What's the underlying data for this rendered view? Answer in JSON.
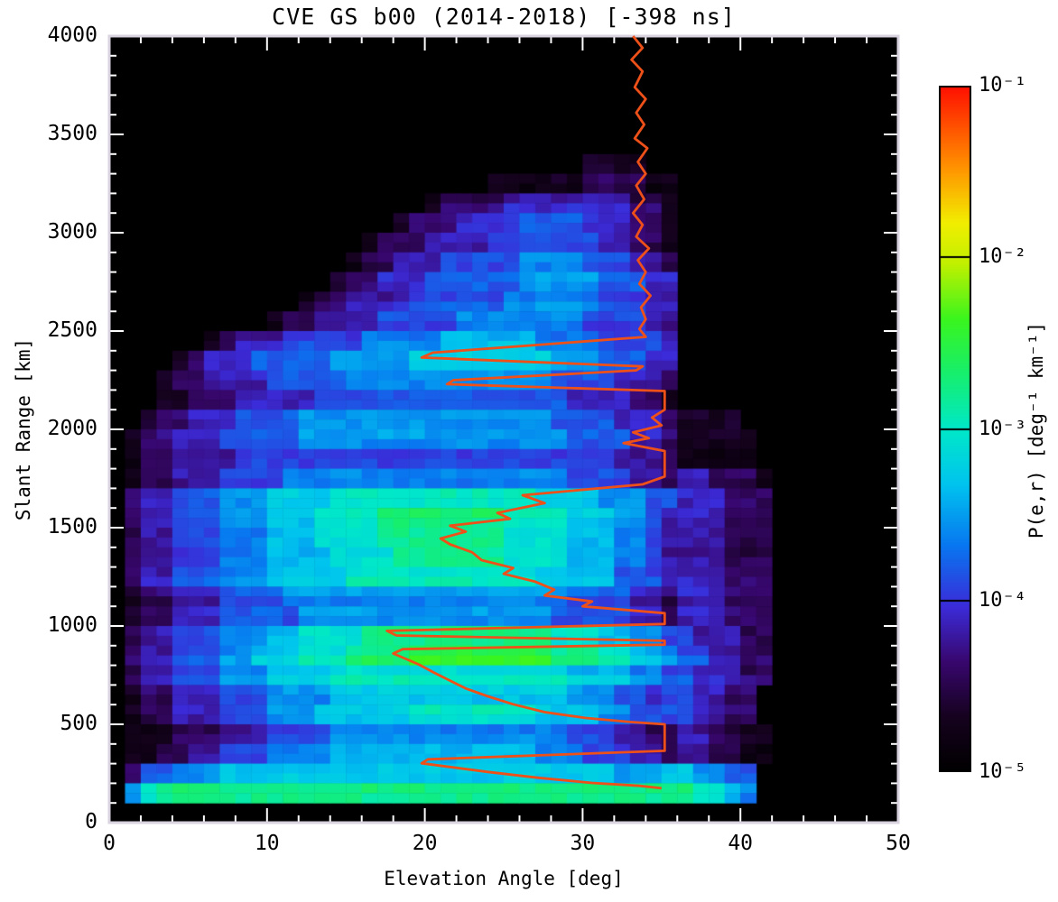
{
  "title": "CVE GS b00 (2014-2018) [-398 ns]",
  "chart_data": {
    "type": "heatmap",
    "title": "CVE GS b00 (2014-2018) [-398 ns]",
    "xlabel": "Elevation Angle [deg]",
    "ylabel": "Slant Range [km]",
    "xlim": [
      0,
      50
    ],
    "ylim": [
      0,
      4000
    ],
    "x_ticks": [
      0,
      10,
      20,
      30,
      40,
      50
    ],
    "x_tick_labels": [
      "0",
      "10",
      "20",
      "30",
      "40",
      "50"
    ],
    "x_minor_step": 2,
    "y_ticks": [
      0,
      500,
      1000,
      1500,
      2000,
      2500,
      3000,
      3500,
      4000
    ],
    "y_tick_labels": [
      "0",
      "500",
      "1000",
      "1500",
      "2000",
      "2500",
      "3000",
      "3500",
      "4000"
    ],
    "y_minor_step": 100,
    "grid_on": false,
    "colorbar": {
      "label": "P(e,r) [deg⁻¹ km⁻¹]",
      "tick_labels": [
        "10⁻¹",
        "10⁻²",
        "10⁻³",
        "10⁻⁴",
        "10⁻⁵"
      ],
      "log_range": [
        -5,
        -1
      ],
      "colormap_stops": [
        [
          0.0,
          "#000000"
        ],
        [
          0.08,
          "#16021f"
        ],
        [
          0.16,
          "#38076e"
        ],
        [
          0.24,
          "#3b2bd8"
        ],
        [
          0.33,
          "#0877f0"
        ],
        [
          0.42,
          "#00c4ee"
        ],
        [
          0.5,
          "#00e8c8"
        ],
        [
          0.58,
          "#16ee6e"
        ],
        [
          0.66,
          "#3af51e"
        ],
        [
          0.74,
          "#c0f000"
        ],
        [
          0.8,
          "#f2ee00"
        ],
        [
          0.88,
          "#ff9400"
        ],
        [
          1.0,
          "#ff0f00"
        ]
      ]
    },
    "grid": {
      "note": "2D histogram of probability density P(e,r); chars 0-9 map log10(P) from -5 (black) up to about -2.4 (bright green). 50 elevation cols (0-50 deg), 40 range rows (4000 km at top to 0 at bottom).",
      "cols": 50,
      "rows": 40,
      "rows_top_to_bottom": [
        "00000000000000000000000000000000000000000000000000",
        "00000000000000000000000000000000000000000000000000",
        "00000000000000000000000000000000000000000000000000",
        "00000000000000000000000000000000000000000000000000",
        "00000000000000000000000000000000000000000000000000",
        "00000000000000000000000000000000000000000000000000",
        "00000000000000000000000000000011110000000000000000",
        "00000000000000000000000011111122221100000000000000",
        "00000000000000000000122223333333322100000000000000",
        "00000000000000000012223333444433322100000000000000",
        "00000000000000001222333344444443322100000000000000",
        "00000000000000012233344444555544433200000000000000",
        "00000000000000122333444444555554443300000000000000",
        "00000000000012233334444445555554443300000000000000",
        "00000000001223333444445555555544443300000000000000",
        "00000012333444445555566666655554444300000000000000",
        "00001233344444555556666666665554443300000000000000",
        "00012233334444455555555555554444333200000000000000",
        "00011222333334444444444444444333322100000000000000",
        "00122333444455555555555555554444333211110000000000",
        "01223334444455555555555555555444433211111000000000",
        "01223333444444444444444444444444333211111000000000",
        "01223334444555555555555555555444433233222100000000",
        "02334445556666777777777777766665554433322200000000",
        "02334445556667777888888887777666554333322200000000",
        "02334445556667777888888887777666554333322200000000",
        "02334445556666777788888887777666554333322200000000",
        "02334445556666677777777777766666444333322200000000",
        "01223334444555555555555555555444433233322200000000",
        "01223334444455555555555555554444433233322200000000",
        "02334445556677778888888888887776655443332200000000",
        "02334445566677788889999999998887766544332200000000",
        "02334445556666777777777777777666655443332200000000",
        "01223334445555666666666666666555443443322000000000",
        "01223334445556666667777777766665544443322000000000",
        "01112223334444555555555555555444332233221100000000",
        "01122334445555666666666666655544433233221100000000",
        "02445556666666666666666666666666555665544000000000",
        "05788888888888888888888888888888888887765000000000",
        "00000000000000000000000000000000000000000000000000"
      ]
    },
    "overlay_line": {
      "name": "median elevation profile",
      "color": "#ee5019",
      "points_elev_range": [
        [
          33.2,
          4000
        ],
        [
          33.8,
          3940
        ],
        [
          33.1,
          3880
        ],
        [
          33.8,
          3820
        ],
        [
          33.3,
          3740
        ],
        [
          34.0,
          3680
        ],
        [
          33.4,
          3610
        ],
        [
          33.9,
          3550
        ],
        [
          33.3,
          3480
        ],
        [
          34.1,
          3430
        ],
        [
          33.5,
          3360
        ],
        [
          34.0,
          3300
        ],
        [
          33.4,
          3240
        ],
        [
          33.9,
          3170
        ],
        [
          33.2,
          3100
        ],
        [
          33.8,
          3040
        ],
        [
          33.4,
          2980
        ],
        [
          34.2,
          2920
        ],
        [
          33.5,
          2860
        ],
        [
          34.0,
          2800
        ],
        [
          33.6,
          2740
        ],
        [
          34.3,
          2680
        ],
        [
          33.7,
          2620
        ],
        [
          34.0,
          2560
        ],
        [
          33.6,
          2510
        ],
        [
          34.0,
          2470
        ],
        [
          20.5,
          2390
        ],
        [
          19.8,
          2365
        ],
        [
          33.8,
          2320
        ],
        [
          33.4,
          2300
        ],
        [
          21.8,
          2250
        ],
        [
          21.4,
          2230
        ],
        [
          35.2,
          2195
        ],
        [
          35.2,
          2100
        ],
        [
          34.4,
          2060
        ],
        [
          35.0,
          2020
        ],
        [
          33.2,
          1985
        ],
        [
          34.2,
          1955
        ],
        [
          32.6,
          1930
        ],
        [
          35.2,
          1890
        ],
        [
          35.2,
          1760
        ],
        [
          33.8,
          1720
        ],
        [
          26.2,
          1665
        ],
        [
          27.6,
          1625
        ],
        [
          24.6,
          1575
        ],
        [
          25.4,
          1545
        ],
        [
          21.6,
          1510
        ],
        [
          22.6,
          1480
        ],
        [
          21.0,
          1445
        ],
        [
          21.6,
          1415
        ],
        [
          23.0,
          1375
        ],
        [
          23.6,
          1335
        ],
        [
          25.6,
          1295
        ],
        [
          25.0,
          1265
        ],
        [
          27.0,
          1225
        ],
        [
          28.2,
          1185
        ],
        [
          27.6,
          1155
        ],
        [
          30.6,
          1125
        ],
        [
          30.0,
          1100
        ],
        [
          35.2,
          1065
        ],
        [
          35.2,
          1010
        ],
        [
          17.6,
          975
        ],
        [
          18.2,
          952
        ],
        [
          35.2,
          925
        ],
        [
          35.2,
          905
        ],
        [
          18.6,
          882
        ],
        [
          18.0,
          860
        ],
        [
          19.6,
          805
        ],
        [
          20.6,
          762
        ],
        [
          21.6,
          722
        ],
        [
          22.6,
          682
        ],
        [
          24.0,
          642
        ],
        [
          25.6,
          602
        ],
        [
          27.6,
          562
        ],
        [
          30.2,
          532
        ],
        [
          33.0,
          512
        ],
        [
          35.2,
          500
        ],
        [
          35.2,
          365
        ],
        [
          20.2,
          322
        ],
        [
          19.8,
          302
        ],
        [
          24.0,
          258
        ],
        [
          27.2,
          228
        ],
        [
          30.6,
          202
        ],
        [
          33.6,
          187
        ],
        [
          35.0,
          175
        ]
      ]
    }
  },
  "layout_colors": {
    "background": "#ffffff",
    "plot_background": "#000000",
    "frame": "#d9d3e0",
    "ticks": "#ffffff",
    "text": "#000000"
  }
}
